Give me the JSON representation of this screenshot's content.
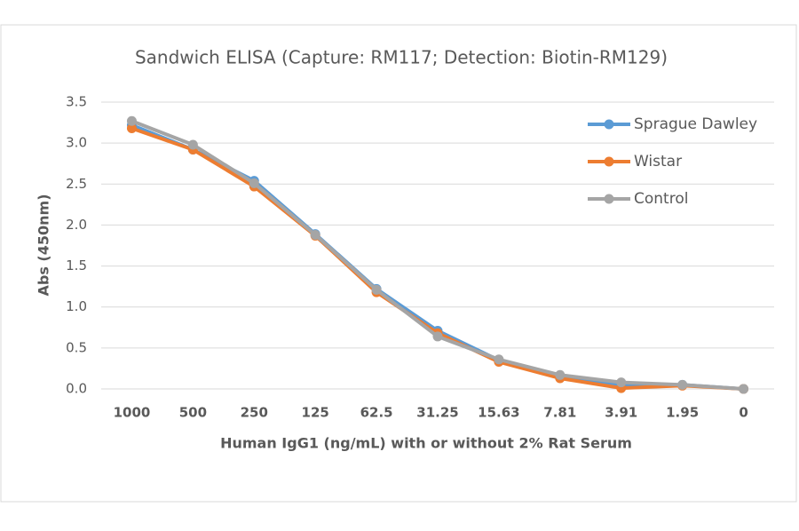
{
  "chart_data": {
    "type": "line",
    "title": "Sandwich ELISA (Capture:  RM117; Detection: Biotin-RM129)",
    "x_label": "Human IgG1 (ng/mL) with or without 2% Rat Serum",
    "y_label": "Abs (450nm)",
    "categories": [
      "1000",
      "500",
      "250",
      "125",
      "62.5",
      "31.25",
      "15.63",
      "7.81",
      "3.91",
      "1.95",
      "0"
    ],
    "series": [
      {
        "name": "Sprague Dawley",
        "color": "#5b9bd5",
        "values": [
          3.22,
          2.92,
          2.54,
          1.89,
          1.22,
          0.71,
          0.35,
          0.15,
          0.05,
          0.05,
          0.0
        ]
      },
      {
        "name": "Wistar",
        "color": "#ed7d31",
        "values": [
          3.18,
          2.92,
          2.47,
          1.87,
          1.18,
          0.68,
          0.33,
          0.13,
          0.01,
          0.04,
          0.0
        ]
      },
      {
        "name": "Control",
        "color": "#a5a5a5",
        "values": [
          3.27,
          2.98,
          2.51,
          1.88,
          1.21,
          0.64,
          0.36,
          0.17,
          0.08,
          0.05,
          0.0
        ]
      }
    ],
    "ylim": [
      0,
      3.5
    ],
    "yticks": [
      {
        "value": 0,
        "label": "0.0"
      },
      0.5,
      {
        "value": 1,
        "label": "1.0"
      },
      1.5,
      {
        "value": 2,
        "label": "2.0"
      },
      2.5,
      {
        "value": 3,
        "label": "3.0"
      },
      3.5
    ],
    "grid": true,
    "legend": "top-right"
  }
}
